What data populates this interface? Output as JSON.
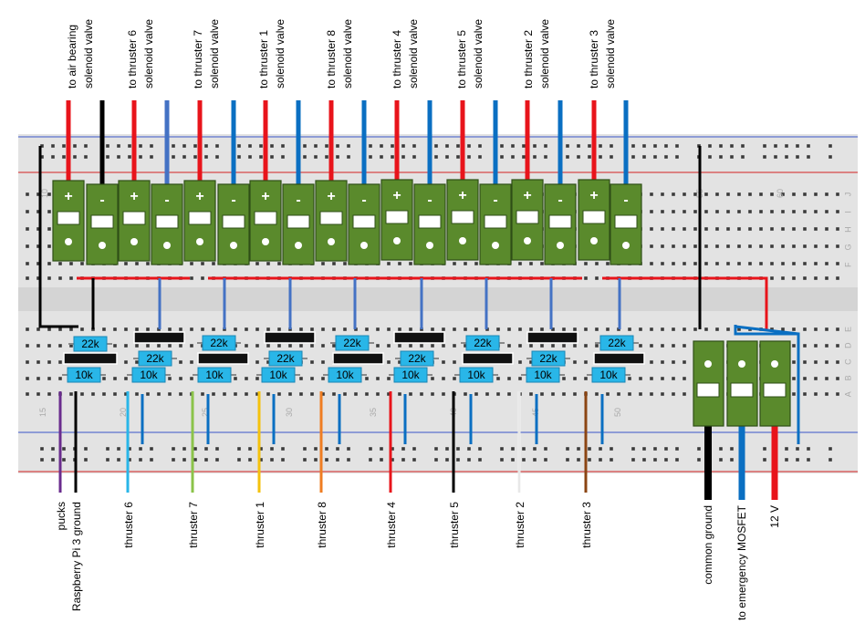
{
  "top_labels": [
    {
      "line1": "to air bearing",
      "line2": "solenoid valve"
    },
    {
      "line1": "to thruster 6",
      "line2": "solenoid valve"
    },
    {
      "line1": "to thruster 7",
      "line2": "solenoid valve"
    },
    {
      "line1": "to thruster 1",
      "line2": "solenoid valve"
    },
    {
      "line1": "to thruster 8",
      "line2": "solenoid valve"
    },
    {
      "line1": "to thruster 4",
      "line2": "solenoid valve"
    },
    {
      "line1": "to thruster 5",
      "line2": "solenoid valve"
    },
    {
      "line1": "to thruster 2",
      "line2": "solenoid valve"
    },
    {
      "line1": "to thruster 3",
      "line2": "solenoid valve"
    }
  ],
  "bottom_labels": [
    {
      "text": "pucks",
      "color": "#6a2c8e"
    },
    {
      "text": "Raspberry Pi 3 ground",
      "color": "#000000"
    },
    {
      "text": "thruster 6",
      "color": "#29b6e8"
    },
    {
      "text": "thruster 7",
      "color": "#8bc34a"
    },
    {
      "text": "thruster 1",
      "color": "#f4c20d"
    },
    {
      "text": "thruster 8",
      "color": "#ef7d22"
    },
    {
      "text": "thruster 4",
      "color": "#e8141b"
    },
    {
      "text": "thruster 5",
      "color": "#000000"
    },
    {
      "text": "thruster 2",
      "color": "#f2f2f2"
    },
    {
      "text": "thruster 3",
      "color": "#8b4513"
    }
  ],
  "power_labels": [
    {
      "text": "common ground",
      "color": "#000000"
    },
    {
      "text": "to emergency MOSFET",
      "color": "#0a6fc2"
    },
    {
      "text": "12 V",
      "color": "#e8141b"
    }
  ],
  "terminal_signs": [
    "+",
    "-"
  ],
  "resistor_labels": {
    "r22": "22k",
    "r10": "10k"
  },
  "board_numbers": {
    "top_60": "60",
    "top_55": "55",
    "top_10": "10",
    "bottom": [
      "15",
      "20",
      "25",
      "30",
      "35",
      "40",
      "45",
      "50"
    ]
  },
  "row_letters_top": [
    "J",
    "I",
    "H",
    "G",
    "F"
  ],
  "row_letters_bottom": [
    "E",
    "D",
    "C",
    "B",
    "A"
  ],
  "colors": {
    "board": "#e3e3e3",
    "terminal_green": "#5a8a2c",
    "resistor_blue": "#29b6e8",
    "wire_red": "#e8141b",
    "wire_blue": "#0a6fc2",
    "wire_black": "#000000"
  }
}
